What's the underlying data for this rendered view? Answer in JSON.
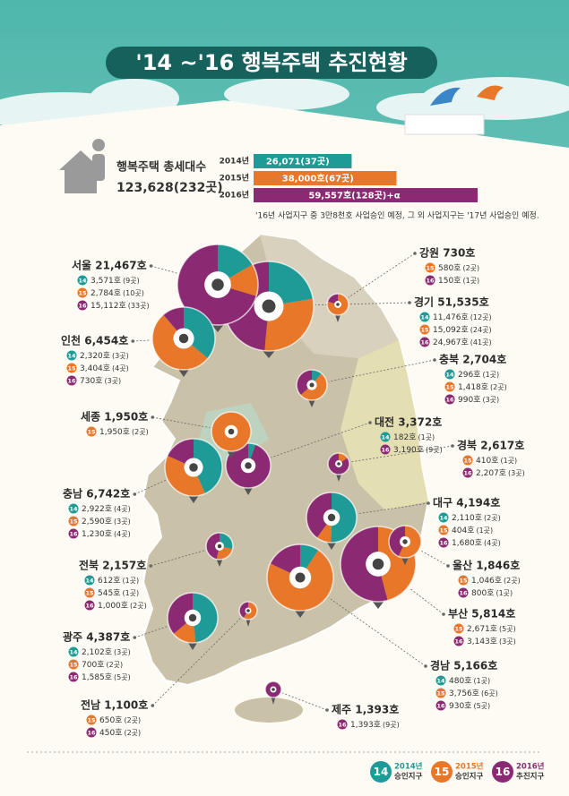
{
  "header": {
    "title": "'14 ~'16 행복주택 추진현황"
  },
  "year_colors": {
    "14": "#1e9a97",
    "15": "#e8772a",
    "16": "#8b2a72"
  },
  "summary": {
    "label": "행복주택 총세대수",
    "total": "123,628(232곳)",
    "bars": [
      {
        "year": "2014년",
        "value": 26071,
        "label": "26,071(37곳)",
        "color": "#1e9a97"
      },
      {
        "year": "2015년",
        "value": 38000,
        "label": "38,000호(67곳)",
        "color": "#e8772a"
      },
      {
        "year": "2016년",
        "value": 59557,
        "label": "59,557호(128곳)+α",
        "color": "#8b2a72"
      }
    ],
    "note": "'16년 사업지구 중 3만8천호 사업승인 예정, 그 외 사업지구는 '17년 사업승인 예정."
  },
  "regions": [
    {
      "title": "서울 21,467호",
      "items": [
        {
          "year": "14",
          "value": 3571,
          "label": "3,571호",
          "sites": "(9곳)"
        },
        {
          "year": "15",
          "value": 2784,
          "label": "2,784호",
          "sites": "(10곳)"
        },
        {
          "year": "16",
          "value": 15112,
          "label": "15,112호",
          "sites": "(33곳)"
        }
      ]
    },
    {
      "title": "인천 6,454호",
      "items": [
        {
          "year": "14",
          "value": 2320,
          "label": "2,320호",
          "sites": "(3곳)"
        },
        {
          "year": "15",
          "value": 3404,
          "label": "3,404호",
          "sites": "(4곳)"
        },
        {
          "year": "16",
          "value": 730,
          "label": "730호",
          "sites": "(3곳)"
        }
      ]
    },
    {
      "title": "세종 1,950호",
      "items": [
        {
          "year": "15",
          "value": 1950,
          "label": "1,950호",
          "sites": "(2곳)"
        }
      ]
    },
    {
      "title": "충남 6,742호",
      "items": [
        {
          "year": "14",
          "value": 2922,
          "label": "2,922호",
          "sites": "(4곳)"
        },
        {
          "year": "15",
          "value": 2590,
          "label": "2,590호",
          "sites": "(3곳)"
        },
        {
          "year": "16",
          "value": 1230,
          "label": "1,230호",
          "sites": "(4곳)"
        }
      ]
    },
    {
      "title": "전북 2,157호",
      "items": [
        {
          "year": "14",
          "value": 612,
          "label": "612호",
          "sites": "(1곳)"
        },
        {
          "year": "15",
          "value": 545,
          "label": "545호",
          "sites": "(1곳)"
        },
        {
          "year": "16",
          "value": 1000,
          "label": "1,000호",
          "sites": "(2곳)"
        }
      ]
    },
    {
      "title": "광주 4,387호",
      "items": [
        {
          "year": "14",
          "value": 2102,
          "label": "2,102호",
          "sites": "(3곳)"
        },
        {
          "year": "15",
          "value": 700,
          "label": "700호",
          "sites": "(2곳)"
        },
        {
          "year": "16",
          "value": 1585,
          "label": "1,585호",
          "sites": "(5곳)"
        }
      ]
    },
    {
      "title": "전남 1,100호",
      "items": [
        {
          "year": "15",
          "value": 650,
          "label": "650호",
          "sites": "(2곳)"
        },
        {
          "year": "16",
          "value": 450,
          "label": "450호",
          "sites": "(2곳)"
        }
      ]
    },
    {
      "title": "강원 730호",
      "items": [
        {
          "year": "15",
          "value": 580,
          "label": "580호",
          "sites": "(2곳)"
        },
        {
          "year": "16",
          "value": 150,
          "label": "150호",
          "sites": "(1곳)"
        }
      ]
    },
    {
      "title": "경기 51,535호",
      "items": [
        {
          "year": "14",
          "value": 11476,
          "label": "11,476호",
          "sites": "(12곳)"
        },
        {
          "year": "15",
          "value": 15092,
          "label": "15,092호",
          "sites": "(24곳)"
        },
        {
          "year": "16",
          "value": 24967,
          "label": "24,967호",
          "sites": "(41곳)"
        }
      ]
    },
    {
      "title": "충북 2,704호",
      "items": [
        {
          "year": "14",
          "value": 296,
          "label": "296호",
          "sites": "(1곳)"
        },
        {
          "year": "15",
          "value": 1418,
          "label": "1,418호",
          "sites": "(2곳)"
        },
        {
          "year": "16",
          "value": 990,
          "label": "990호",
          "sites": "(3곳)"
        }
      ]
    },
    {
      "title": "대전 3,372호",
      "items": [
        {
          "year": "14",
          "value": 182,
          "label": "182호",
          "sites": "(1곳)"
        },
        {
          "year": "16",
          "value": 3190,
          "label": "3,190호",
          "sites": "(9곳)"
        }
      ]
    },
    {
      "title": "경북 2,617호",
      "items": [
        {
          "year": "15",
          "value": 410,
          "label": "410호",
          "sites": "(1곳)"
        },
        {
          "year": "16",
          "value": 2207,
          "label": "2,207호",
          "sites": "(3곳)"
        }
      ]
    },
    {
      "title": "대구 4,194호",
      "items": [
        {
          "year": "14",
          "value": 2110,
          "label": "2,110호",
          "sites": "(2곳)"
        },
        {
          "year": "15",
          "value": 404,
          "label": "404호",
          "sites": "(1곳)"
        },
        {
          "year": "16",
          "value": 1680,
          "label": "1,680호",
          "sites": "(4곳)"
        }
      ]
    },
    {
      "title": "울산 1,846호",
      "items": [
        {
          "year": "15",
          "value": 1046,
          "label": "1,046호",
          "sites": "(2곳)"
        },
        {
          "year": "16",
          "value": 800,
          "label": "800호",
          "sites": "(1곳)"
        }
      ]
    },
    {
      "title": "부산 5,814호",
      "items": [
        {
          "year": "15",
          "value": 2671,
          "label": "2,671호",
          "sites": "(5곳)"
        },
        {
          "year": "16",
          "value": 3143,
          "label": "3,143호",
          "sites": "(3곳)"
        }
      ]
    },
    {
      "title": "경남 5,166호",
      "items": [
        {
          "year": "14",
          "value": 480,
          "label": "480호",
          "sites": "(1곳)"
        },
        {
          "year": "15",
          "value": 3756,
          "label": "3,756호",
          "sites": "(6곳)"
        },
        {
          "year": "16",
          "value": 930,
          "label": "930호",
          "sites": "(5곳)"
        }
      ]
    },
    {
      "title": "제주 1,393호",
      "items": [
        {
          "year": "16",
          "value": 1393,
          "label": "1,393호",
          "sites": "(9곳)"
        }
      ]
    }
  ],
  "legend": [
    {
      "badge": "14",
      "lines": [
        "2014년",
        "승인지구"
      ]
    },
    {
      "badge": "15",
      "lines": [
        "2015년",
        "승인지구"
      ]
    },
    {
      "badge": "16",
      "lines": [
        "2016년",
        "추진지구"
      ]
    }
  ]
}
